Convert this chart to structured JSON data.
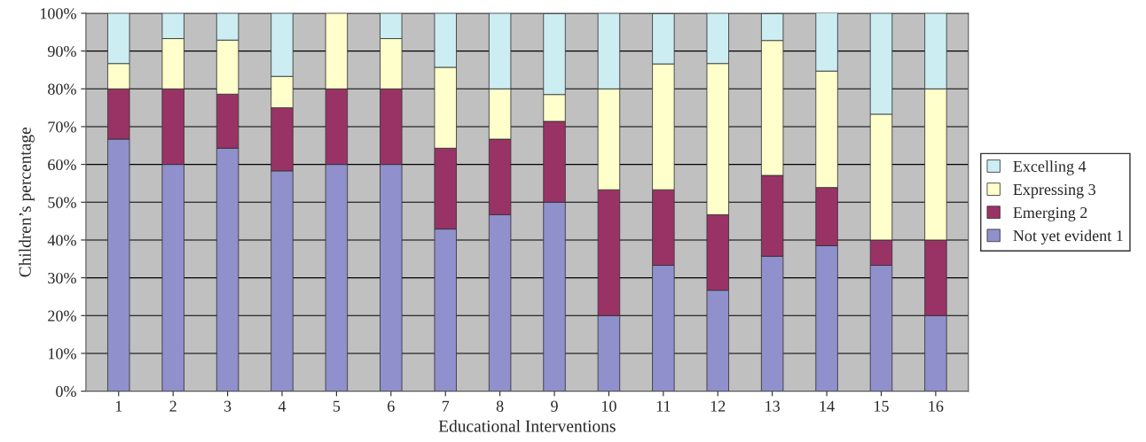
{
  "chart_data": {
    "type": "bar",
    "stacked": true,
    "xlabel": "Educational Interventions",
    "ylabel": "Children’s percentage",
    "categories": [
      "1",
      "2",
      "3",
      "4",
      "5",
      "6",
      "7",
      "8",
      "9",
      "10",
      "11",
      "12",
      "13",
      "14",
      "15",
      "16"
    ],
    "series": [
      {
        "name": "Not yet evident 1",
        "color": "#9090cc",
        "values": [
          66.7,
          60,
          64.3,
          58.3,
          60,
          60,
          42.9,
          46.7,
          50,
          20,
          33.3,
          26.7,
          35.7,
          38.5,
          33.3,
          20
        ]
      },
      {
        "name": "Emerging 2",
        "color": "#993366",
        "values": [
          13.3,
          20,
          14.3,
          16.7,
          20,
          20,
          21.4,
          20,
          21.4,
          33.3,
          20,
          20,
          21.4,
          15.4,
          6.7,
          20
        ]
      },
      {
        "name": "Expressing 3",
        "color": "#ffffcc",
        "values": [
          6.7,
          13.3,
          14.3,
          8.3,
          20,
          13.3,
          21.4,
          13.3,
          7.1,
          26.7,
          33.3,
          40,
          35.7,
          30.8,
          33.3,
          40
        ]
      },
      {
        "name": "Excelling 4",
        "color": "#cceef2",
        "values": [
          13.3,
          6.7,
          7.1,
          16.7,
          null,
          6.7,
          14.3,
          20,
          21.4,
          20,
          13.3,
          13.3,
          7.1,
          15.4,
          26.7,
          20
        ]
      }
    ],
    "ylim": [
      0,
      100
    ],
    "yticks": [
      {
        "value": 0,
        "label": "0%"
      },
      {
        "value": 10,
        "label": "10%"
      },
      {
        "value": 20,
        "label": "20%"
      },
      {
        "value": 30,
        "label": "30%"
      },
      {
        "value": 40,
        "label": "40%"
      },
      {
        "value": 50,
        "label": "50%"
      },
      {
        "value": 60,
        "label": "60%"
      },
      {
        "value": 70,
        "label": "70%"
      },
      {
        "value": 80,
        "label": "80%"
      },
      {
        "value": 90,
        "label": "90%"
      },
      {
        "value": 100,
        "label": "100%"
      }
    ],
    "grid": "y",
    "legend": "right"
  }
}
